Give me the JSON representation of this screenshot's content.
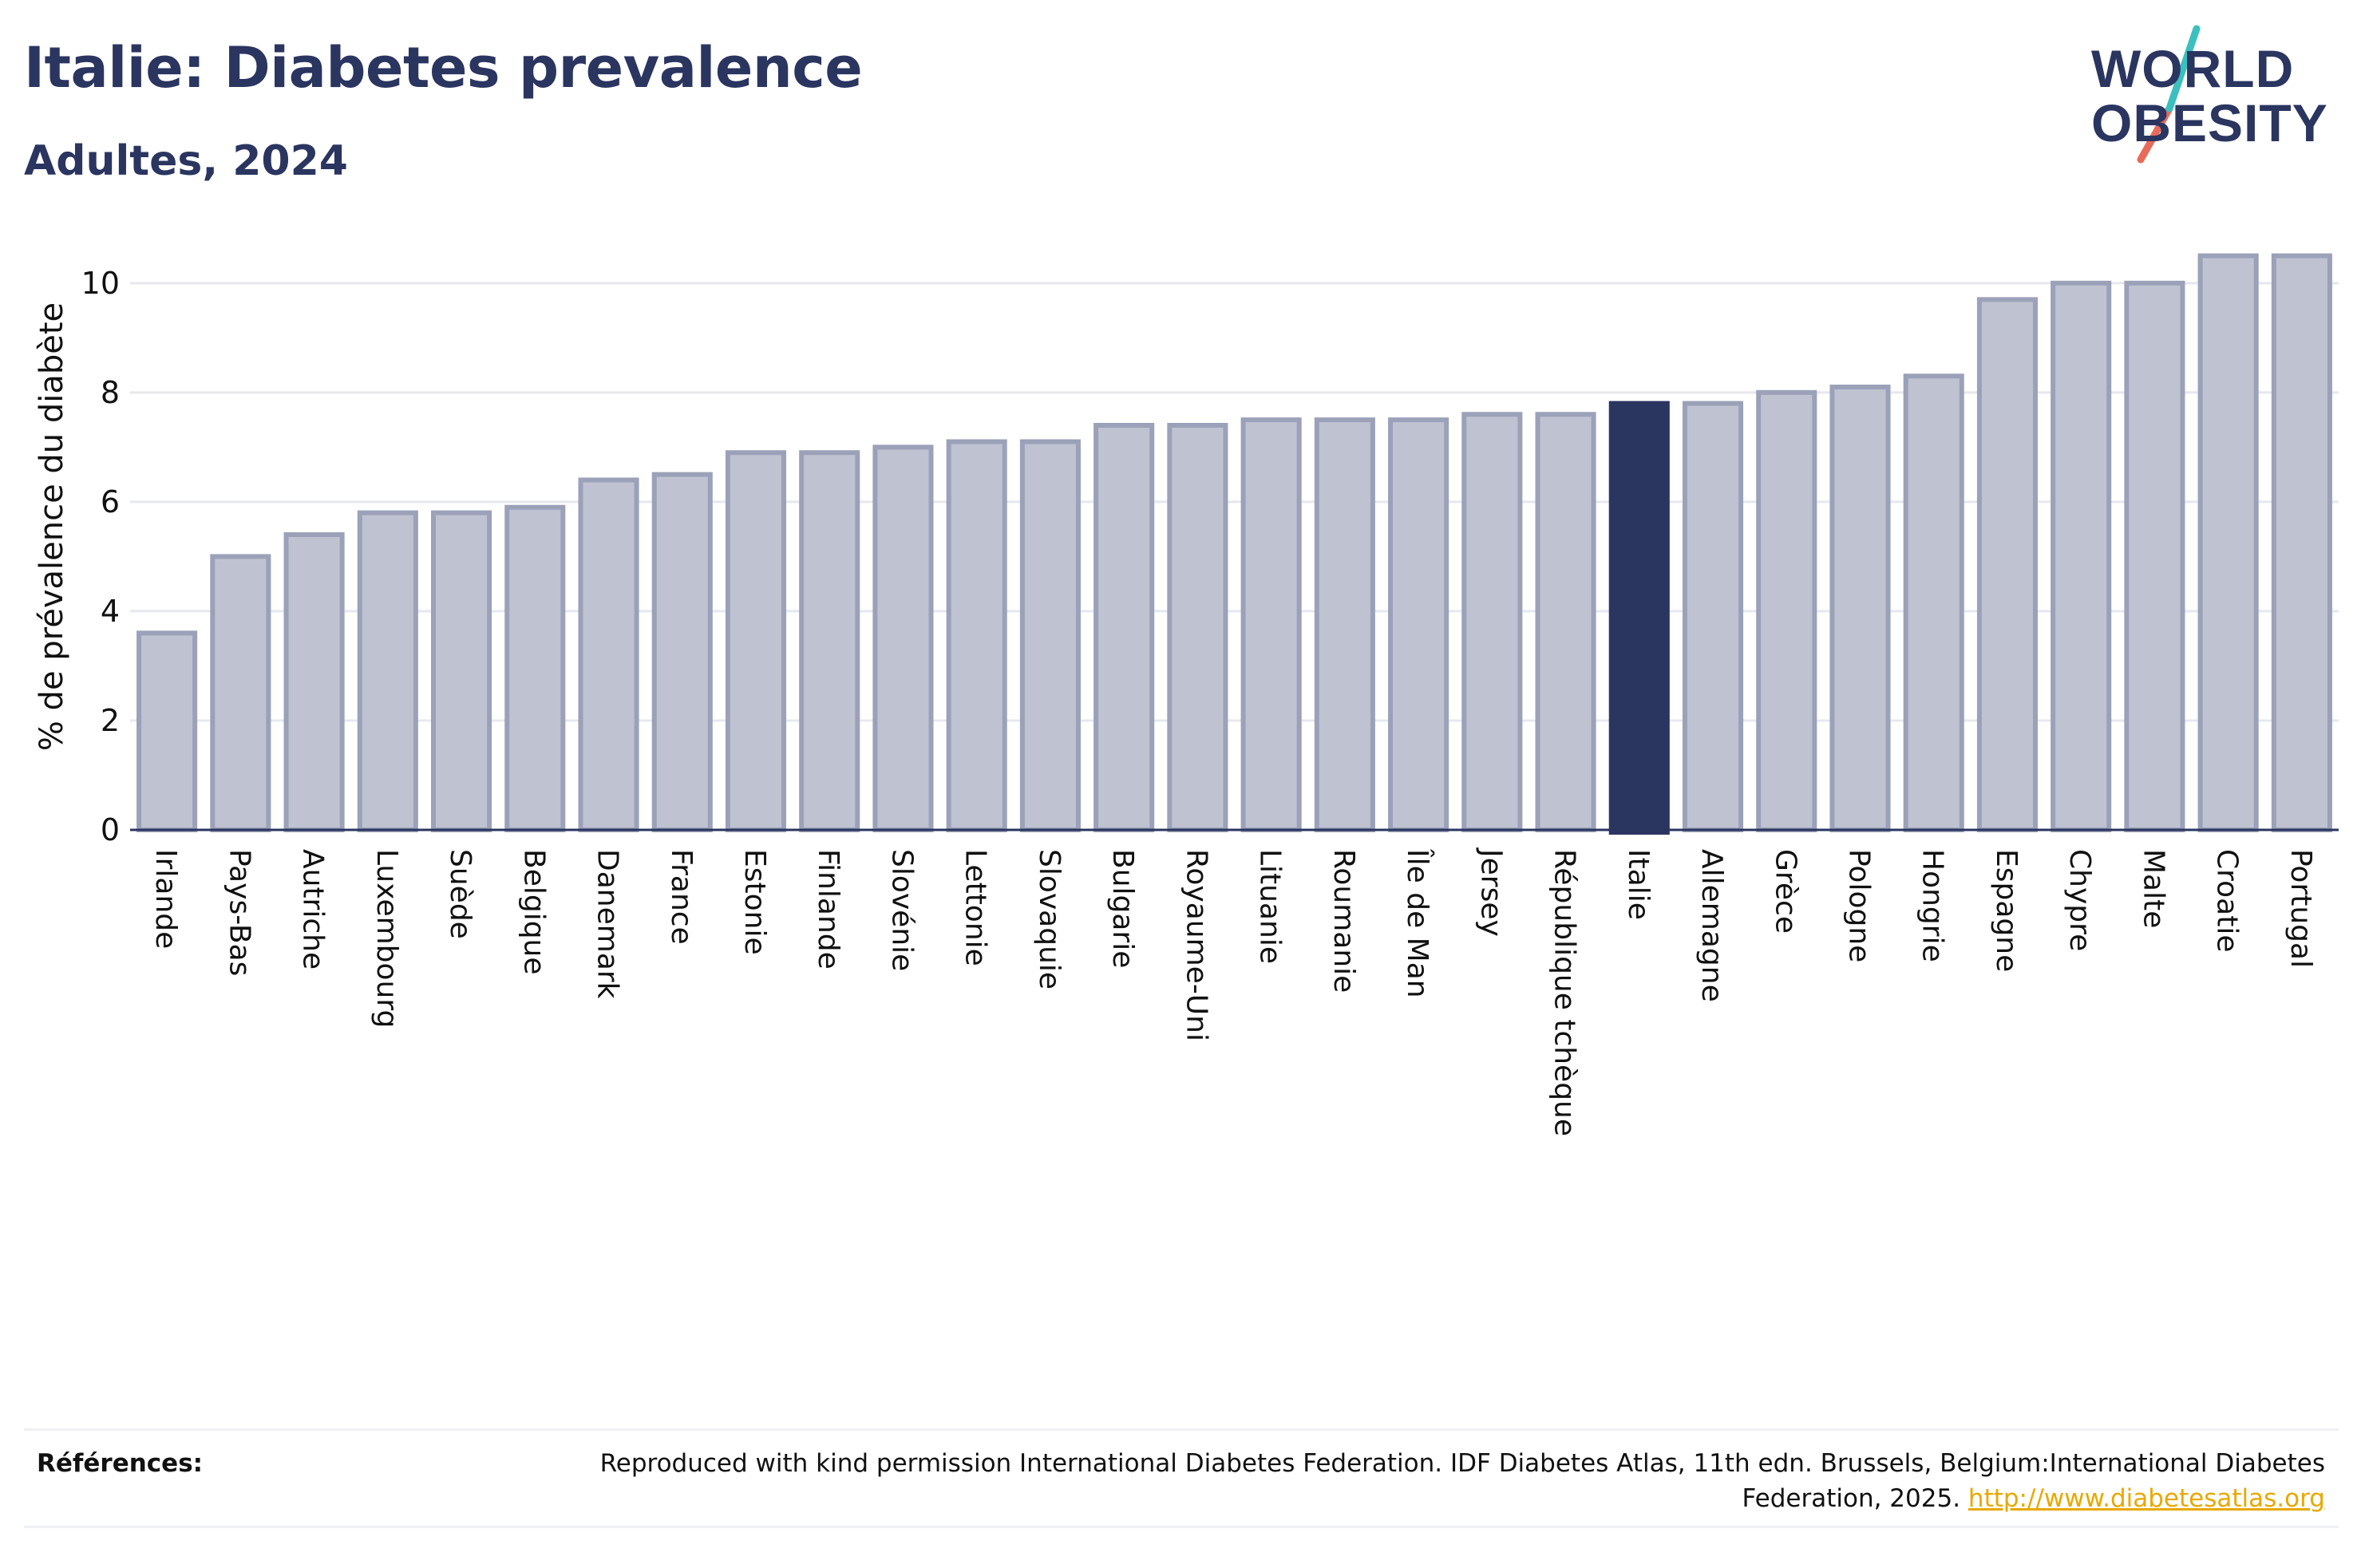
{
  "header": {
    "title": "Italie: Diabetes prevalence",
    "subtitle": "Adultes, 2024"
  },
  "logo": {
    "line1": "WORLD",
    "line2": "OBESITY",
    "slash_colors": [
      "#3bbfbf",
      "#e86a5a"
    ]
  },
  "chart_data": {
    "type": "bar",
    "title": "Italie: Diabetes prevalence",
    "subtitle": "Adultes, 2024",
    "xlabel": "",
    "ylabel": "% de prévalence du diabète",
    "ylim": [
      0,
      10.8
    ],
    "yticks": [
      0,
      2,
      4,
      6,
      8,
      10
    ],
    "grid": true,
    "highlight": "Italie",
    "colors": {
      "bar": "#bfc3d1",
      "bar_border": "#9ba1b8",
      "highlight": "#2a3560"
    },
    "categories": [
      "Irlande",
      "Pays-Bas",
      "Autriche",
      "Luxembourg",
      "Suède",
      "Belgique",
      "Danemark",
      "France",
      "Estonie",
      "Finlande",
      "Slovénie",
      "Lettonie",
      "Slovaquie",
      "Bulgarie",
      "Royaume-Uni",
      "Lituanie",
      "Roumanie",
      "Île de Man",
      "Jersey",
      "République tchèque",
      "Italie",
      "Allemagne",
      "Grèce",
      "Pologne",
      "Hongrie",
      "Espagne",
      "Chypre",
      "Malte",
      "Croatie",
      "Portugal"
    ],
    "values": [
      3.6,
      5.0,
      5.4,
      5.8,
      5.8,
      5.9,
      6.4,
      6.5,
      6.9,
      6.9,
      7.0,
      7.1,
      7.1,
      7.4,
      7.4,
      7.5,
      7.5,
      7.5,
      7.6,
      7.6,
      7.8,
      7.8,
      8.0,
      8.1,
      8.3,
      9.7,
      10.0,
      10.0,
      10.5,
      10.5
    ]
  },
  "footer": {
    "references_label": "Références:",
    "reference_text": "Reproduced with kind permission International Diabetes Federation. IDF Diabetes Atlas, 11th edn. Brussels, Belgium:International Diabetes Federation, 2025.",
    "reference_link": "http://www.diabetesatlas.org"
  }
}
